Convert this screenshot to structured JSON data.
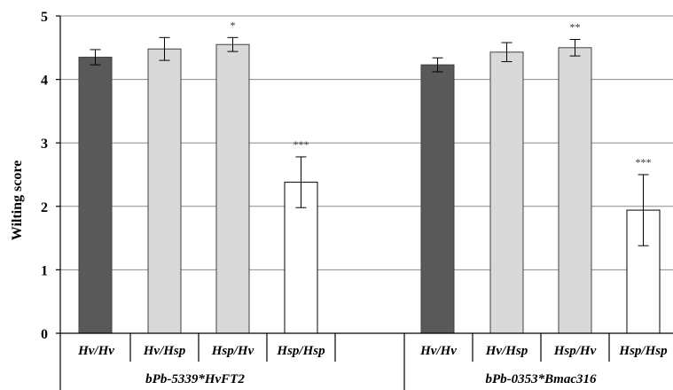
{
  "chart_data": {
    "type": "bar",
    "title": "",
    "xlabel": "",
    "ylabel": "Wilting score",
    "ylim": [
      0,
      5
    ],
    "yticks": [
      0,
      1,
      2,
      3,
      4,
      5
    ],
    "grid": true,
    "groups": [
      {
        "label": "bPb-5339*HvFT2",
        "categories": [
          "Hv/Hv",
          "Hv/Hsp",
          "Hsp/Hv",
          "Hsp/Hsp"
        ],
        "values": [
          4.35,
          4.48,
          4.55,
          2.38
        ],
        "errors": [
          0.12,
          0.18,
          0.11,
          0.4
        ],
        "significance": [
          "",
          "",
          "*",
          "***"
        ],
        "fills": [
          "#595959",
          "#d9d9d9",
          "#d9d9d9",
          "#ffffff"
        ]
      },
      {
        "label": "bPb-0353*Bmac316",
        "categories": [
          "Hv/Hv",
          "Hv/Hsp",
          "Hsp/Hv",
          "Hsp/Hsp"
        ],
        "values": [
          4.23,
          4.43,
          4.5,
          1.94
        ],
        "errors": [
          0.11,
          0.15,
          0.13,
          0.56
        ],
        "significance": [
          "",
          "",
          "**",
          "***"
        ],
        "fills": [
          "#595959",
          "#d9d9d9",
          "#d9d9d9",
          "#ffffff"
        ]
      }
    ]
  }
}
